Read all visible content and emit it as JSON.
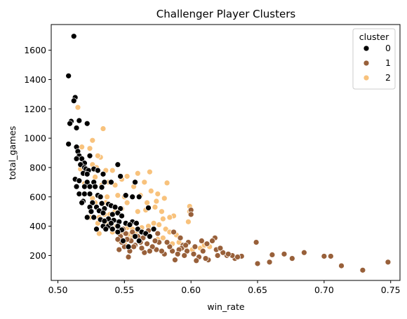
{
  "chart_data": {
    "type": "scatter",
    "title": "Challenger Player Clusters",
    "xlabel": "win_rate",
    "ylabel": "total_games",
    "xlim": [
      0.495,
      0.757
    ],
    "ylim": [
      30,
      1775
    ],
    "x_ticks": [
      "0.50",
      "0.55",
      "0.60",
      "0.65",
      "0.70",
      "0.75"
    ],
    "x_tick_values": [
      0.5,
      0.55,
      0.6,
      0.65,
      0.7,
      0.75
    ],
    "y_ticks": [
      "200",
      "400",
      "600",
      "800",
      "1000",
      "1200",
      "1400",
      "1600"
    ],
    "y_tick_values": [
      200,
      400,
      600,
      800,
      1000,
      1200,
      1400,
      1600
    ],
    "grid": false,
    "legend": {
      "title": "cluster",
      "placement": "top-right"
    },
    "series": [
      {
        "name": "0",
        "color": "#000000",
        "points": [
          [
            0.512,
            1695
          ],
          [
            0.508,
            1425
          ],
          [
            0.513,
            1278
          ],
          [
            0.512,
            1255
          ],
          [
            0.516,
            1120
          ],
          [
            0.51,
            1115
          ],
          [
            0.509,
            1100
          ],
          [
            0.522,
            1100
          ],
          [
            0.514,
            1070
          ],
          [
            0.508,
            960
          ],
          [
            0.514,
            940
          ],
          [
            0.515,
            910
          ],
          [
            0.516,
            880
          ],
          [
            0.524,
            880
          ],
          [
            0.518,
            860
          ],
          [
            0.514,
            860
          ],
          [
            0.52,
            830
          ],
          [
            0.517,
            820
          ],
          [
            0.52,
            800
          ],
          [
            0.521,
            790
          ],
          [
            0.527,
            790
          ],
          [
            0.53,
            780
          ],
          [
            0.523,
            780
          ],
          [
            0.545,
            820
          ],
          [
            0.519,
            760
          ],
          [
            0.522,
            755
          ],
          [
            0.534,
            755
          ],
          [
            0.547,
            740
          ],
          [
            0.513,
            720
          ],
          [
            0.516,
            710
          ],
          [
            0.522,
            700
          ],
          [
            0.527,
            700
          ],
          [
            0.535,
            700
          ],
          [
            0.54,
            700
          ],
          [
            0.558,
            700
          ],
          [
            0.514,
            670
          ],
          [
            0.52,
            670
          ],
          [
            0.524,
            670
          ],
          [
            0.528,
            670
          ],
          [
            0.533,
            665
          ],
          [
            0.516,
            620
          ],
          [
            0.52,
            620
          ],
          [
            0.524,
            620
          ],
          [
            0.53,
            610
          ],
          [
            0.551,
            610
          ],
          [
            0.556,
            600
          ],
          [
            0.561,
            600
          ],
          [
            0.532,
            600
          ],
          [
            0.519,
            570
          ],
          [
            0.526,
            560
          ],
          [
            0.518,
            560
          ],
          [
            0.533,
            555
          ],
          [
            0.538,
            550
          ],
          [
            0.54,
            540
          ],
          [
            0.543,
            530
          ],
          [
            0.524,
            530
          ],
          [
            0.529,
            530
          ],
          [
            0.535,
            520
          ],
          [
            0.547,
            520
          ],
          [
            0.568,
            525
          ],
          [
            0.531,
            505
          ],
          [
            0.525,
            500
          ],
          [
            0.534,
            490
          ],
          [
            0.541,
            480
          ],
          [
            0.545,
            490
          ],
          [
            0.548,
            470
          ],
          [
            0.522,
            460
          ],
          [
            0.527,
            460
          ],
          [
            0.532,
            445
          ],
          [
            0.538,
            450
          ],
          [
            0.542,
            440
          ],
          [
            0.546,
            430
          ],
          [
            0.551,
            420
          ],
          [
            0.556,
            430
          ],
          [
            0.559,
            420
          ],
          [
            0.534,
            400
          ],
          [
            0.538,
            400
          ],
          [
            0.545,
            400
          ],
          [
            0.541,
            380
          ],
          [
            0.548,
            375
          ],
          [
            0.536,
            380
          ],
          [
            0.529,
            380
          ],
          [
            0.554,
            410
          ],
          [
            0.56,
            380
          ],
          [
            0.563,
            360
          ],
          [
            0.566,
            350
          ],
          [
            0.558,
            330
          ],
          [
            0.561,
            300
          ],
          [
            0.569,
            330
          ],
          [
            0.572,
            380
          ],
          [
            0.553,
            260
          ],
          [
            0.549,
            300
          ],
          [
            0.545,
            360
          ],
          [
            0.54,
            420
          ],
          [
            0.535,
            435
          ]
        ]
      },
      {
        "name": "1",
        "color": "#98603a",
        "points": [
          [
            0.748,
            155
          ],
          [
            0.729,
            100
          ],
          [
            0.713,
            130
          ],
          [
            0.705,
            195
          ],
          [
            0.7,
            195
          ],
          [
            0.685,
            220
          ],
          [
            0.676,
            180
          ],
          [
            0.67,
            210
          ],
          [
            0.661,
            205
          ],
          [
            0.659,
            155
          ],
          [
            0.65,
            145
          ],
          [
            0.649,
            290
          ],
          [
            0.638,
            195
          ],
          [
            0.633,
            180
          ],
          [
            0.631,
            200
          ],
          [
            0.627,
            200
          ],
          [
            0.624,
            220
          ],
          [
            0.62,
            200
          ],
          [
            0.619,
            240
          ],
          [
            0.618,
            320
          ],
          [
            0.616,
            300
          ],
          [
            0.613,
            170
          ],
          [
            0.611,
            180
          ],
          [
            0.609,
            230
          ],
          [
            0.606,
            190
          ],
          [
            0.604,
            165
          ],
          [
            0.602,
            210
          ],
          [
            0.6,
            510
          ],
          [
            0.6,
            480
          ],
          [
            0.598,
            290
          ],
          [
            0.597,
            230
          ],
          [
            0.595,
            200
          ],
          [
            0.594,
            270
          ],
          [
            0.593,
            250
          ],
          [
            0.591,
            240
          ],
          [
            0.59,
            210
          ],
          [
            0.588,
            170
          ],
          [
            0.586,
            230
          ],
          [
            0.584,
            260
          ],
          [
            0.582,
            290
          ],
          [
            0.58,
            210
          ],
          [
            0.578,
            230
          ],
          [
            0.576,
            290
          ],
          [
            0.575,
            350
          ],
          [
            0.574,
            240
          ],
          [
            0.573,
            300
          ],
          [
            0.571,
            260
          ],
          [
            0.569,
            230
          ],
          [
            0.568,
            370
          ],
          [
            0.567,
            280
          ],
          [
            0.565,
            220
          ],
          [
            0.564,
            320
          ],
          [
            0.563,
            250
          ],
          [
            0.562,
            290
          ],
          [
            0.56,
            330
          ],
          [
            0.558,
            270
          ],
          [
            0.557,
            260
          ],
          [
            0.556,
            360
          ],
          [
            0.555,
            300
          ],
          [
            0.554,
            230
          ],
          [
            0.553,
            190
          ],
          [
            0.552,
            310
          ],
          [
            0.551,
            350
          ],
          [
            0.55,
            260
          ],
          [
            0.549,
            380
          ],
          [
            0.548,
            290
          ],
          [
            0.547,
            330
          ],
          [
            0.546,
            240
          ],
          [
            0.545,
            310
          ],
          [
            0.587,
            360
          ],
          [
            0.592,
            320
          ],
          [
            0.596,
            270
          ],
          [
            0.603,
            260
          ],
          [
            0.608,
            300
          ],
          [
            0.612,
            280
          ],
          [
            0.622,
            250
          ],
          [
            0.628,
            210
          ],
          [
            0.635,
            190
          ]
        ]
      },
      {
        "name": "2",
        "color": "#f8c27c",
        "points": [
          [
            0.515,
            1210
          ],
          [
            0.534,
            1065
          ],
          [
            0.526,
            985
          ],
          [
            0.518,
            940
          ],
          [
            0.524,
            930
          ],
          [
            0.532,
            870
          ],
          [
            0.53,
            880
          ],
          [
            0.526,
            820
          ],
          [
            0.529,
            800
          ],
          [
            0.517,
            790
          ],
          [
            0.536,
            780
          ],
          [
            0.541,
            780
          ],
          [
            0.569,
            770
          ],
          [
            0.56,
            760
          ],
          [
            0.552,
            740
          ],
          [
            0.528,
            735
          ],
          [
            0.548,
            720
          ],
          [
            0.538,
            700
          ],
          [
            0.565,
            700
          ],
          [
            0.582,
            695
          ],
          [
            0.52,
            690
          ],
          [
            0.533,
            680
          ],
          [
            0.543,
            680
          ],
          [
            0.557,
            670
          ],
          [
            0.57,
            640
          ],
          [
            0.575,
            620
          ],
          [
            0.562,
            610
          ],
          [
            0.55,
            600
          ],
          [
            0.545,
            610
          ],
          [
            0.537,
            600
          ],
          [
            0.526,
            590
          ],
          [
            0.528,
            560
          ],
          [
            0.536,
            560
          ],
          [
            0.552,
            560
          ],
          [
            0.567,
            560
          ],
          [
            0.58,
            590
          ],
          [
            0.574,
            570
          ],
          [
            0.573,
            530
          ],
          [
            0.578,
            500
          ],
          [
            0.599,
            535
          ],
          [
            0.599,
            500
          ],
          [
            0.598,
            430
          ],
          [
            0.587,
            470
          ],
          [
            0.584,
            460
          ],
          [
            0.579,
            450
          ],
          [
            0.566,
            510
          ],
          [
            0.56,
            500
          ],
          [
            0.548,
            520
          ],
          [
            0.543,
            500
          ],
          [
            0.539,
            480
          ],
          [
            0.535,
            480
          ],
          [
            0.531,
            460
          ],
          [
            0.524,
            460
          ],
          [
            0.53,
            420
          ],
          [
            0.537,
            410
          ],
          [
            0.544,
            400
          ],
          [
            0.552,
            390
          ],
          [
            0.556,
            380
          ],
          [
            0.563,
            390
          ],
          [
            0.568,
            400
          ],
          [
            0.572,
            420
          ],
          [
            0.576,
            410
          ],
          [
            0.581,
            380
          ],
          [
            0.584,
            360
          ],
          [
            0.589,
            340
          ],
          [
            0.586,
            280
          ],
          [
            0.579,
            320
          ],
          [
            0.575,
            310
          ],
          [
            0.565,
            340
          ],
          [
            0.561,
            370
          ],
          [
            0.558,
            350
          ],
          [
            0.555,
            330
          ],
          [
            0.55,
            280
          ],
          [
            0.546,
            300
          ],
          [
            0.591,
            290
          ],
          [
            0.596,
            260
          ],
          [
            0.601,
            240
          ],
          [
            0.607,
            250
          ],
          [
            0.61,
            270
          ],
          [
            0.614,
            260
          ],
          [
            0.531,
            350
          ],
          [
            0.541,
            360
          ],
          [
            0.549,
            350
          ],
          [
            0.553,
            345
          ]
        ]
      }
    ]
  }
}
